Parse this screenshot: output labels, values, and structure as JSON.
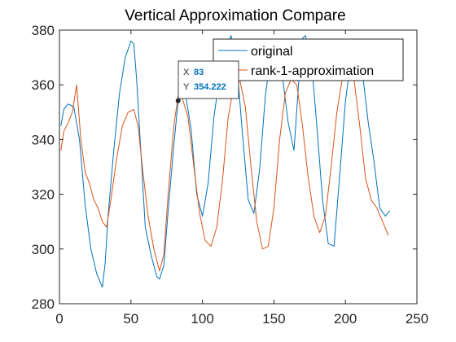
{
  "chart_data": {
    "type": "line",
    "title": "Vertical Approximation Compare",
    "xlabel": "",
    "ylabel": "",
    "xlim": [
      0,
      250
    ],
    "ylim": [
      280,
      380
    ],
    "xticks": [
      0,
      50,
      100,
      150,
      200,
      250
    ],
    "yticks": [
      280,
      300,
      320,
      340,
      360,
      380
    ],
    "grid": false,
    "legend_position": "top-right",
    "series": [
      {
        "name": "original",
        "color": "#0072BD",
        "x": [
          1,
          3,
          6,
          10,
          14,
          18,
          22,
          26,
          30,
          32,
          34,
          38,
          42,
          46,
          50,
          52,
          54,
          57,
          60,
          64,
          68,
          70,
          73,
          76,
          80,
          83,
          86,
          88,
          92,
          96,
          100,
          104,
          108,
          112,
          116,
          120,
          124,
          128,
          132,
          136,
          140,
          144,
          148,
          152,
          156,
          160,
          164,
          168,
          170,
          172,
          176,
          180,
          184,
          188,
          192,
          196,
          200,
          204,
          208,
          212,
          216,
          220,
          224,
          228,
          231
        ],
        "y": [
          345,
          351,
          353,
          352,
          340,
          316,
          300,
          291,
          286,
          295,
          312,
          336,
          357,
          370,
          376,
          375,
          362,
          335,
          308,
          298,
          290,
          289,
          294,
          314,
          338,
          354,
          358,
          357,
          344,
          320,
          312,
          324,
          348,
          363,
          372,
          378,
          368,
          342,
          318,
          313,
          329,
          356,
          372,
          376,
          363,
          346,
          336,
          366,
          377,
          378,
          370,
          345,
          318,
          302,
          301,
          327,
          354,
          370,
          374,
          364,
          346,
          332,
          315,
          312,
          314
        ]
      },
      {
        "name": "rank-1-approximation",
        "color": "#D95319",
        "x": [
          1,
          3,
          6,
          9,
          12,
          15,
          18,
          21,
          24,
          27,
          30,
          33,
          36,
          40,
          44,
          48,
          52,
          55,
          58,
          62,
          66,
          70,
          73,
          76,
          80,
          83,
          86,
          90,
          94,
          98,
          102,
          106,
          110,
          114,
          118,
          122,
          126,
          130,
          134,
          138,
          142,
          146,
          150,
          154,
          158,
          162,
          166,
          170,
          174,
          178,
          182,
          186,
          190,
          194,
          198,
          202,
          206,
          210,
          214,
          218,
          222,
          226,
          230
        ],
        "y": [
          336,
          343,
          346,
          350,
          360,
          340,
          328,
          324,
          318,
          315,
          310,
          308,
          318,
          333,
          345,
          350,
          351,
          345,
          330,
          312,
          300,
          292,
          298,
          320,
          345,
          356,
          355,
          348,
          330,
          313,
          303,
          301,
          308,
          325,
          348,
          360,
          362,
          352,
          330,
          310,
          300,
          301,
          315,
          340,
          357,
          362,
          360,
          345,
          326,
          312,
          306,
          312,
          330,
          350,
          363,
          368,
          362,
          345,
          326,
          318,
          315,
          310,
          305
        ]
      }
    ],
    "datatip": {
      "x_label": "X",
      "x_value": "83",
      "y_label": "Y",
      "y_value": "354.222"
    }
  }
}
